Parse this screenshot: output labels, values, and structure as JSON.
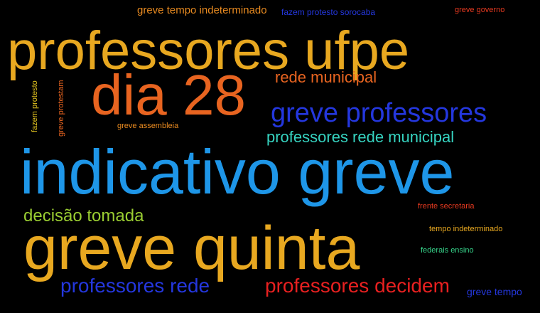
{
  "cloud": {
    "words": [
      {
        "text": "professores ufpe",
        "color": "#E8A820"
      },
      {
        "text": "dia 28",
        "color": "#E86420"
      },
      {
        "text": "indicativo greve",
        "color": "#1E96E8"
      },
      {
        "text": "greve quinta",
        "color": "#E8A820"
      },
      {
        "text": "greve professores",
        "color": "#2437DE"
      },
      {
        "text": "professores rede municipal",
        "color": "#36D3C0"
      },
      {
        "text": "rede municipal",
        "color": "#E86420"
      },
      {
        "text": "decisão tomada",
        "color": "#9ACD32"
      },
      {
        "text": "professores rede",
        "color": "#2437DE"
      },
      {
        "text": "professores decidem",
        "color": "#E82020"
      },
      {
        "text": "greve tempo indeterminado",
        "color": "#E88A20"
      },
      {
        "text": "fazem protesto sorocaba",
        "color": "#2437DE"
      },
      {
        "text": "greve governo",
        "color": "#E83A20"
      },
      {
        "text": "greve assembleia",
        "color": "#E88A20"
      },
      {
        "text": "fazem protesto",
        "color": "#E8C820"
      },
      {
        "text": "greve protestam",
        "color": "#E86420"
      },
      {
        "text": "frente secretaria",
        "color": "#E83A20"
      },
      {
        "text": "tempo indeterminado",
        "color": "#E8A820"
      },
      {
        "text": "federais ensino",
        "color": "#36D38A"
      },
      {
        "text": "greve tempo",
        "color": "#2437DE"
      }
    ]
  }
}
